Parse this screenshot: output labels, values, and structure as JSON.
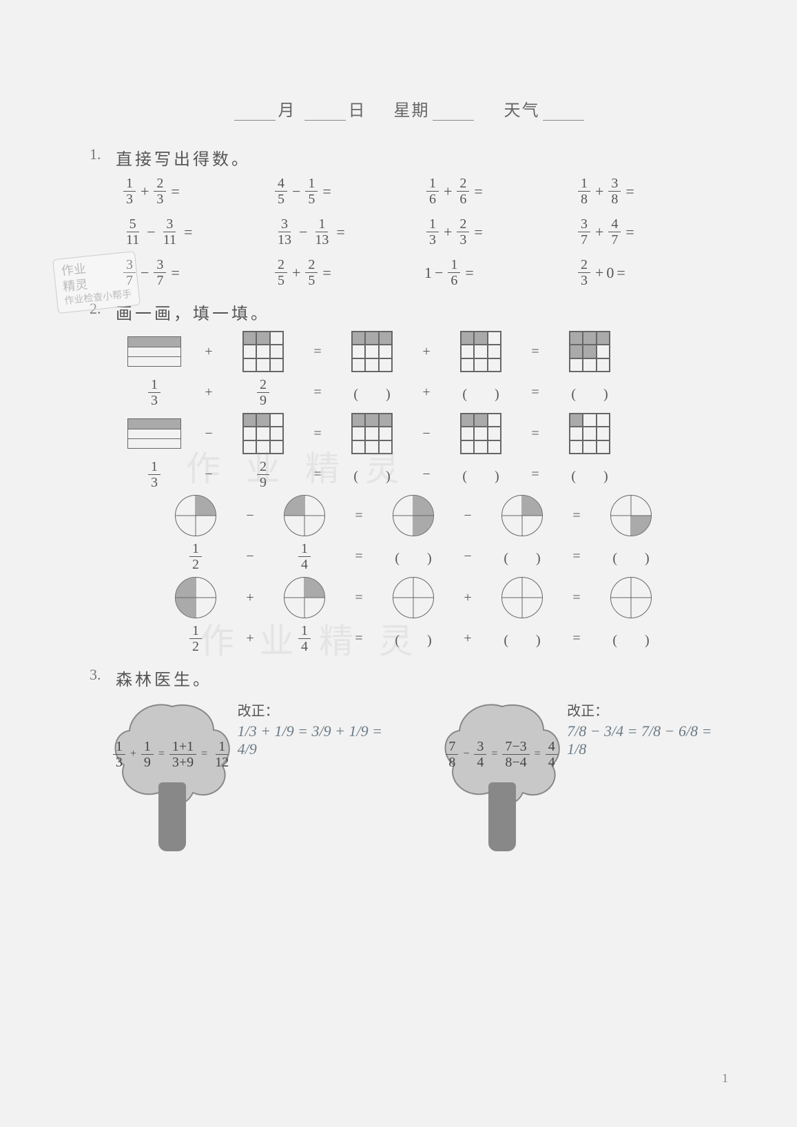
{
  "header": {
    "month_label": "月",
    "day_label": "日",
    "weekday_label": "星期",
    "weather_label": "天气"
  },
  "section1": {
    "num": "1.",
    "title": "直接写出得数。",
    "rows": [
      [
        {
          "a_n": "1",
          "a_d": "3",
          "op": "+",
          "b_n": "2",
          "b_d": "3"
        },
        {
          "a_n": "4",
          "a_d": "5",
          "op": "−",
          "b_n": "1",
          "b_d": "5"
        },
        {
          "a_n": "1",
          "a_d": "6",
          "op": "+",
          "b_n": "2",
          "b_d": "6"
        },
        {
          "a_n": "1",
          "a_d": "8",
          "op": "+",
          "b_n": "3",
          "b_d": "8"
        }
      ],
      [
        {
          "a_n": "5",
          "a_d": "11",
          "op": "−",
          "b_n": "3",
          "b_d": "11"
        },
        {
          "a_n": "3",
          "a_d": "13",
          "op": "−",
          "b_n": "1",
          "b_d": "13"
        },
        {
          "a_n": "1",
          "a_d": "3",
          "op": "+",
          "b_n": "2",
          "b_d": "3"
        },
        {
          "a_n": "3",
          "a_d": "7",
          "op": "+",
          "b_n": "4",
          "b_d": "7"
        }
      ],
      [
        {
          "a_n": "3",
          "a_d": "7",
          "op": "−",
          "b_n": "3",
          "b_d": "7"
        },
        {
          "a_n": "2",
          "a_d": "5",
          "op": "+",
          "b_n": "2",
          "b_d": "5"
        },
        {
          "lit_a": "1",
          "op": "−",
          "b_n": "1",
          "b_d": "6"
        },
        {
          "a_n": "2",
          "a_d": "3",
          "op": "+",
          "lit_b": "0"
        }
      ]
    ]
  },
  "section2": {
    "num": "2.",
    "title": "画一画，填一填。",
    "row1_fracs": {
      "a_n": "1",
      "a_d": "3",
      "op": "+",
      "b_n": "2",
      "b_d": "9"
    },
    "row2_fracs": {
      "a_n": "1",
      "a_d": "3",
      "op": "−",
      "b_n": "2",
      "b_d": "9"
    },
    "row3_fracs": {
      "a_n": "1",
      "a_d": "2",
      "op": "−",
      "b_n": "1",
      "b_d": "4"
    },
    "row4_fracs": {
      "a_n": "1",
      "a_d": "2",
      "op": "+",
      "b_n": "1",
      "b_d": "4"
    },
    "paren": "(　　)",
    "eq": "="
  },
  "section3": {
    "num": "3.",
    "title": "森林医生。",
    "tree1_expr": "1/3 + 1/9 = (1+1)/(3+9) = 1/12",
    "tree1_a_n": "1",
    "tree1_a_d": "3",
    "tree1_b_n": "1",
    "tree1_b_d": "9",
    "tree1_mid_n": "1+1",
    "tree1_mid_d": "3+9",
    "tree1_res_n": "1",
    "tree1_res_d": "12",
    "tree2_a_n": "7",
    "tree2_a_d": "8",
    "tree2_b_n": "3",
    "tree2_b_d": "4",
    "tree2_mid_n": "7−3",
    "tree2_mid_d": "8−4",
    "tree2_res_n": "4",
    "tree2_res_d": "4",
    "correction_label": "改正：",
    "corr1": "1/3 + 1/9 = 3/9 + 1/9 = 4/9",
    "corr2": "7/8 − 3/4 = 7/8 − 6/8 = 1/8"
  },
  "stamp": {
    "line1": "作业",
    "line2": "精灵",
    "line3": "作业检查小帮手"
  },
  "watermark1": "作 业 精 灵",
  "watermark2": "作 业 精 灵",
  "page_number": "1",
  "colors": {
    "bg": "#f2f2f2",
    "text": "#555555",
    "shaded": "#aaaaaa",
    "grid_border": "#666666",
    "hand": "#6a7a85",
    "stamp": "#bbbbbb",
    "trunk": "#888888",
    "crown": "#bcbcbc"
  }
}
